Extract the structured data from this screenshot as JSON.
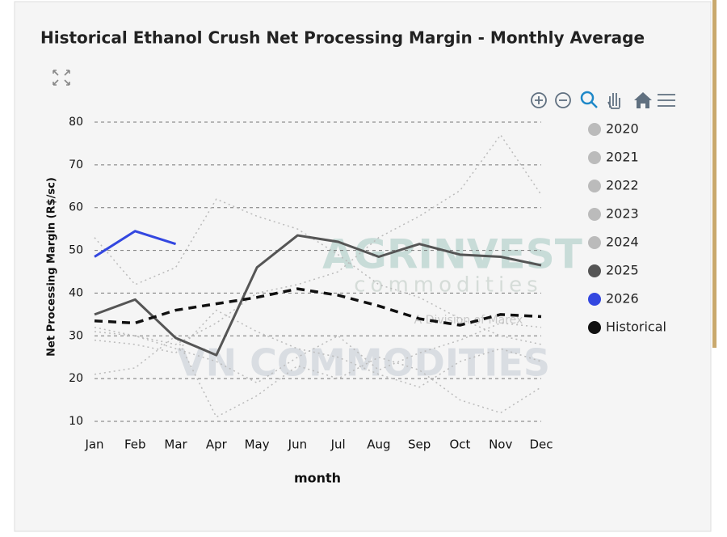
{
  "chart_data": {
    "type": "line",
    "title": "Historical Ethanol Crush Net Processing Margin - Monthly Average",
    "x_label": "month",
    "y_label": "Net Processing Margin (R$/sc)",
    "categories": [
      "Jan",
      "Feb",
      "Mar",
      "Apr",
      "May",
      "Jun",
      "Jul",
      "Aug",
      "Sep",
      "Oct",
      "Nov",
      "Dec"
    ],
    "ylim": [
      10,
      80
    ],
    "yticks": [
      10,
      20,
      30,
      40,
      50,
      60,
      70,
      80
    ],
    "grid": true,
    "watermarks": [
      "AGRINVEST",
      "commodities",
      "A Division of Marex",
      "VN COMMODITIES"
    ],
    "series": [
      {
        "name": "2020",
        "color": "#bbbbbb",
        "values": [
          21,
          22.5,
          30,
          11,
          16,
          23,
          20,
          25,
          22,
          15,
          12,
          18
        ]
      },
      {
        "name": "2021",
        "color": "#bbbbbb",
        "values": [
          32,
          30,
          28,
          33,
          40,
          42,
          45,
          53,
          58,
          64,
          77,
          63
        ]
      },
      {
        "name": "2022",
        "color": "#bbbbbb",
        "values": [
          53,
          42,
          46,
          62,
          58,
          55,
          49,
          42,
          39,
          34,
          30,
          28
        ]
      },
      {
        "name": "2023",
        "color": "#bbbbbb",
        "values": [
          29,
          28,
          26,
          36,
          31,
          27,
          25,
          21,
          18,
          24,
          27,
          24
        ]
      },
      {
        "name": "2024",
        "color": "#bbbbbb",
        "values": [
          31,
          30,
          27,
          24,
          19,
          25,
          30,
          22,
          26,
          29,
          33,
          32
        ]
      },
      {
        "name": "2025",
        "color": "#555555",
        "values": [
          35,
          38.5,
          29.5,
          25.5,
          46,
          53.5,
          52,
          48.5,
          51.5,
          49,
          48.5,
          46.5
        ]
      },
      {
        "name": "2026",
        "color": "#3347e0",
        "values": [
          48.5,
          54.5,
          51.5,
          null,
          null,
          null,
          null,
          null,
          null,
          null,
          null,
          null
        ]
      },
      {
        "name": "Historical",
        "color": "#111111",
        "values": [
          33.5,
          33,
          36,
          37.5,
          39,
          41,
          39.5,
          37,
          34,
          32.5,
          35,
          34.5
        ]
      }
    ]
  }
}
